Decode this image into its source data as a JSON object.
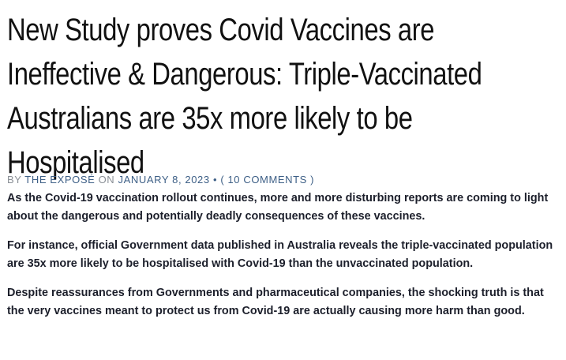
{
  "article": {
    "headline_lines": [
      "New Study proves Covid Vaccines are",
      "Ineffective & Dangerous: Triple-Vaccinated",
      "Australians are 35x more likely to be",
      "Hospitalised"
    ],
    "byline": {
      "by": "BY",
      "author": "THE EXPOSÉ",
      "on": "ON",
      "date": "JANUARY 8, 2023",
      "bullet": "•",
      "comments": "( 10 COMMENTS )"
    },
    "paragraphs": [
      "As the Covid-19 vaccination rollout continues, more and more disturbing reports are coming to light about the dangerous and potentially deadly consequences of these vaccines.",
      "For instance, official Government data published in Australia reveals the triple-vaccinated population are 35x more likely to be hospitalised with Covid-19 than the unvaccinated population.",
      "Despite reassurances from Governments and pharmaceutical companies, the shocking truth is that the very vaccines meant to protect us from Covid-19 are actually causing more harm than good."
    ]
  },
  "colors": {
    "headline": "#111111",
    "byline_muted": "#8a8f96",
    "byline_link": "#3d5f86",
    "body": "#1c1f2b"
  }
}
